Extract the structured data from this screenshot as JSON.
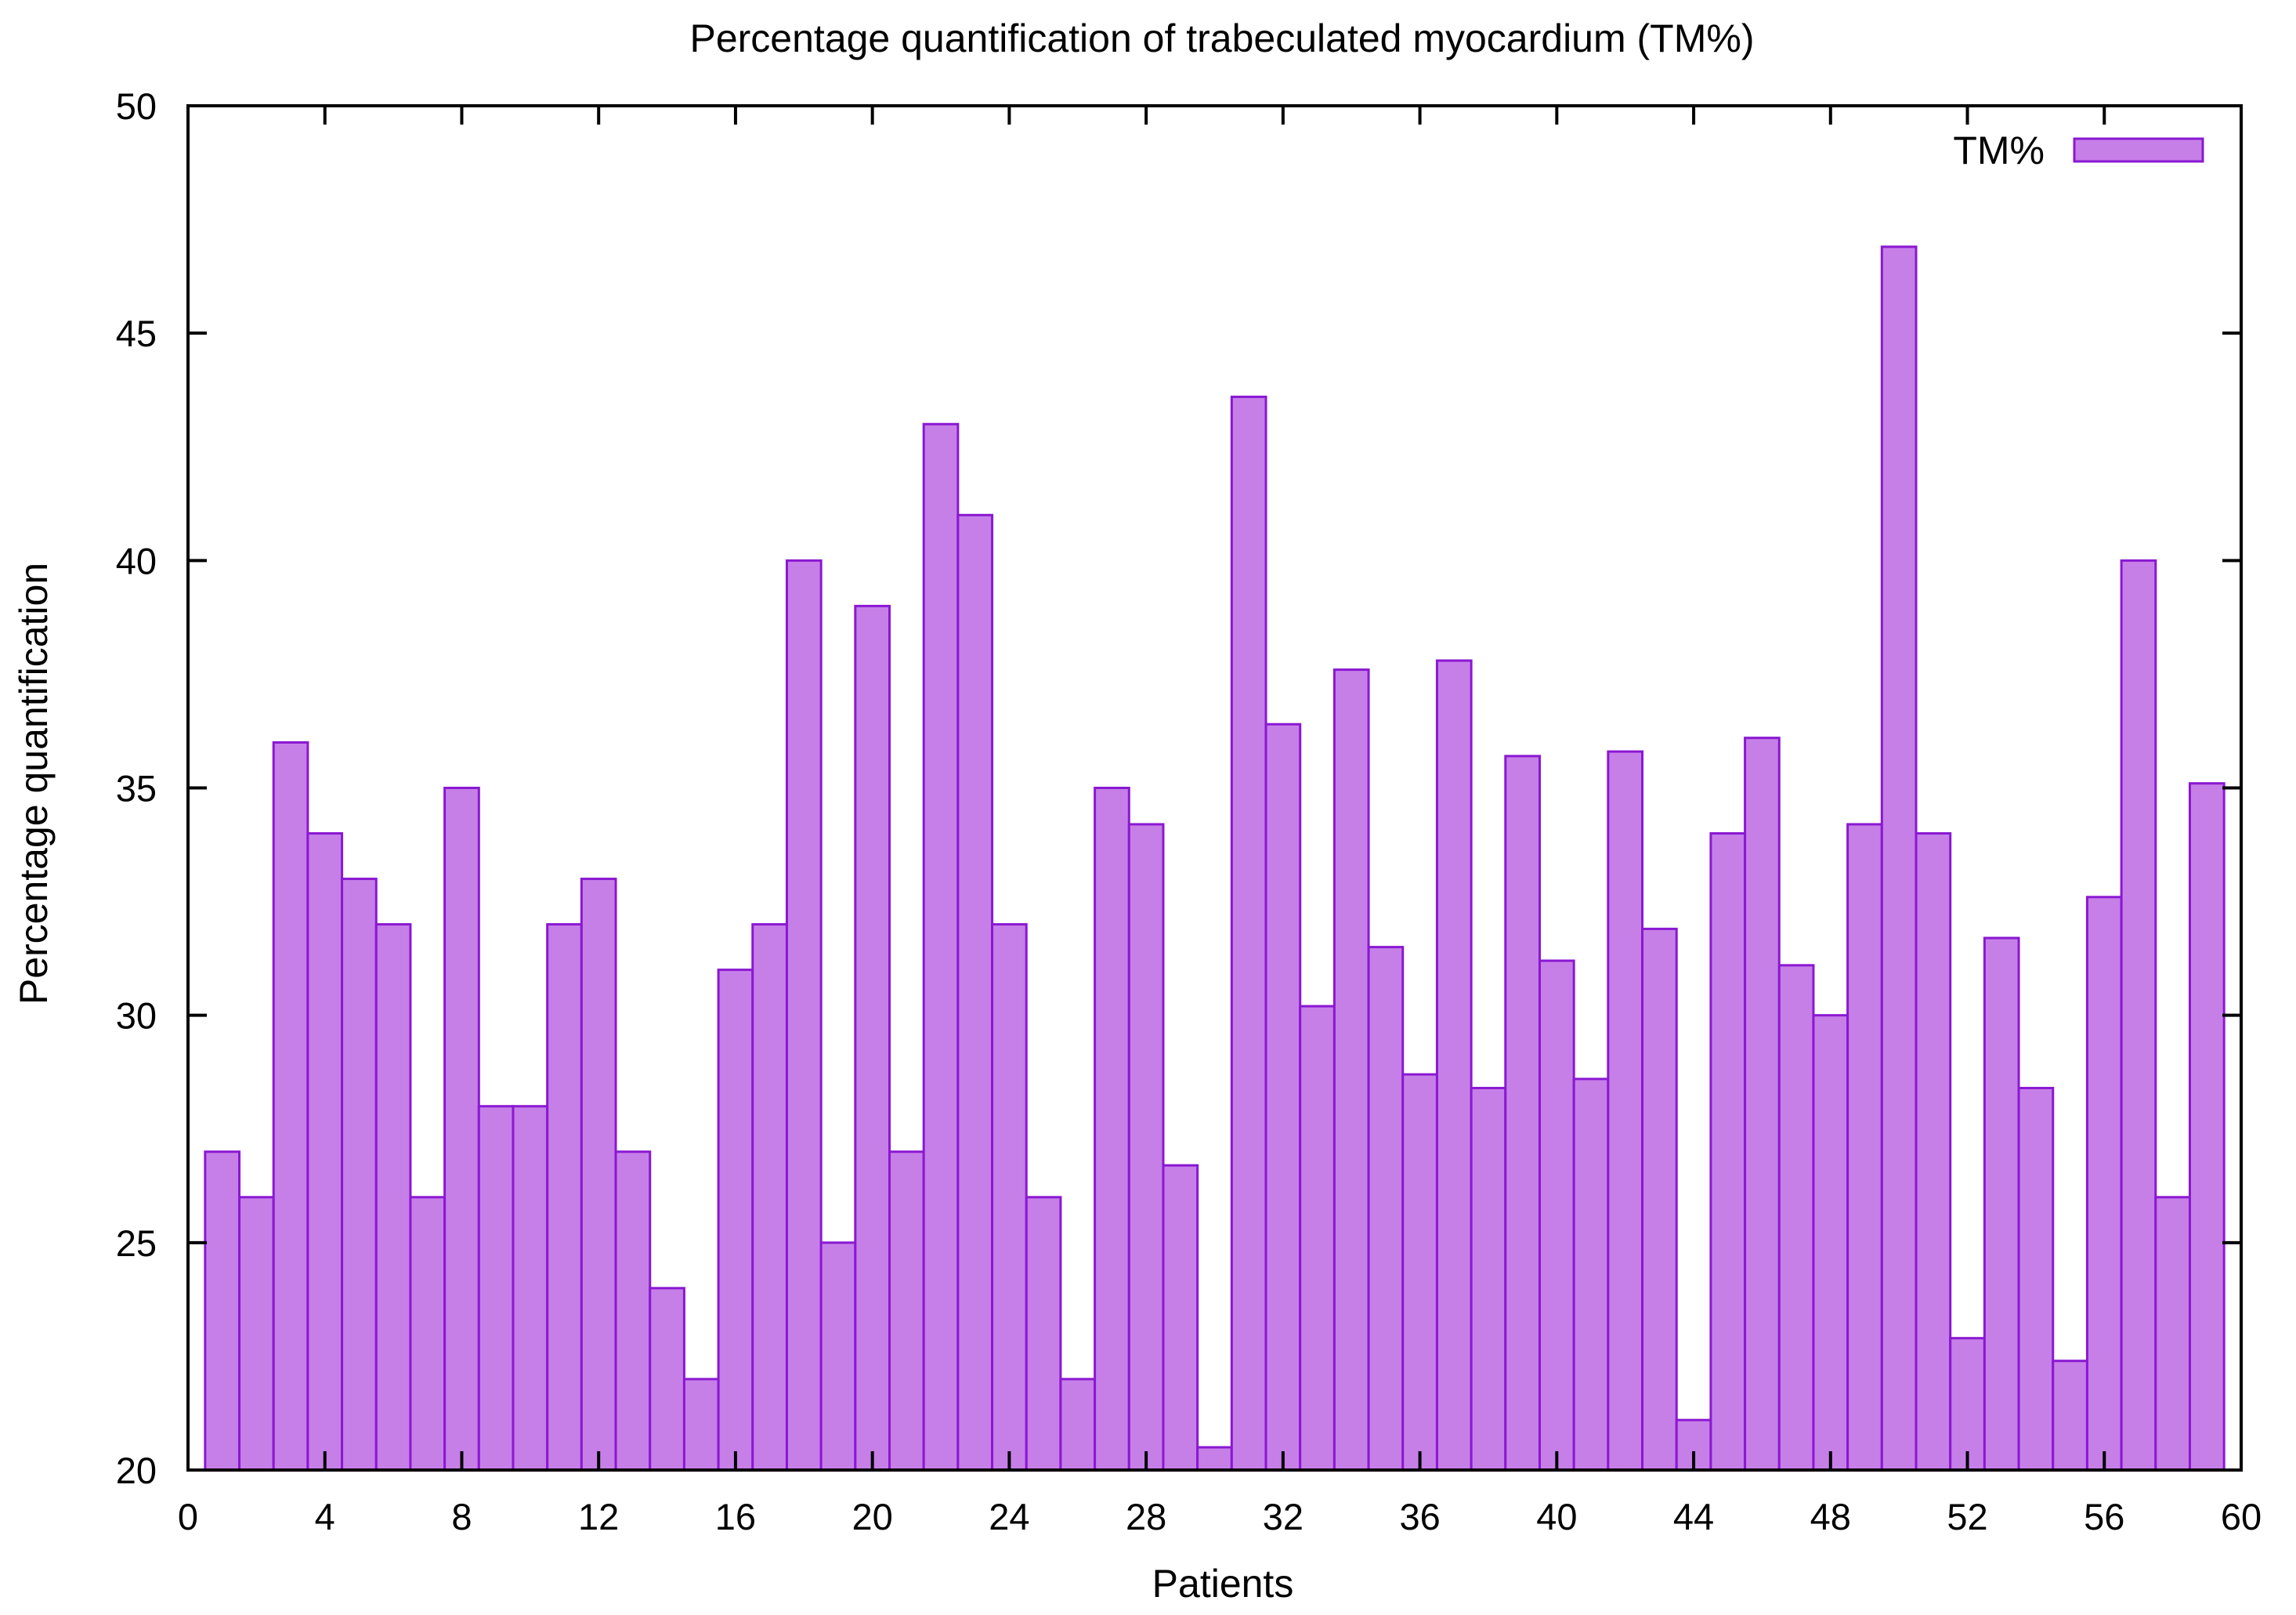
{
  "colors": {
    "bar_fill": "#c77fe8",
    "bar_stroke": "#8a18d2",
    "axis": "#000000",
    "background": "#ffffff"
  },
  "chart_data": {
    "type": "bar",
    "title": "Percentage quantification of trabeculated myocardium (TM%)",
    "xlabel": "Patients",
    "ylabel": "Percentage quantification",
    "xlim": [
      0,
      60
    ],
    "ylim": [
      20,
      50
    ],
    "x_ticks": [
      0,
      4,
      8,
      12,
      16,
      20,
      24,
      28,
      32,
      36,
      40,
      44,
      48,
      52,
      56,
      60
    ],
    "y_ticks": [
      20,
      25,
      30,
      35,
      40,
      45,
      50
    ],
    "grid": false,
    "legend": {
      "position": "top-right",
      "entries": [
        "TM%"
      ]
    },
    "series": [
      {
        "name": "TM%",
        "x": [
          1,
          2,
          3,
          4,
          5,
          6,
          7,
          8,
          9,
          10,
          11,
          12,
          13,
          14,
          15,
          16,
          17,
          18,
          19,
          20,
          21,
          22,
          23,
          24,
          25,
          26,
          27,
          28,
          29,
          30,
          31,
          32,
          33,
          34,
          35,
          36,
          37,
          38,
          39,
          40,
          41,
          42,
          43,
          44,
          45,
          46,
          47,
          48,
          49,
          50,
          51,
          52,
          53,
          54,
          55,
          56,
          57,
          58,
          59
        ],
        "values": [
          27,
          26,
          36,
          34,
          33,
          32,
          26,
          35,
          28,
          28,
          32,
          33,
          27,
          24,
          22,
          31,
          32,
          40,
          25,
          39,
          27,
          43,
          41,
          32,
          26,
          22,
          35,
          34.2,
          26.7,
          20.5,
          43.6,
          36.4,
          30.2,
          37.6,
          31.5,
          28.7,
          37.8,
          28.4,
          35.7,
          31.2,
          28.6,
          35.8,
          31.9,
          21.1,
          34,
          36.1,
          31.1,
          30,
          34.2,
          46.9,
          34,
          22.9,
          31.7,
          28.4,
          22.4,
          32.6,
          40,
          26,
          35.1
        ]
      }
    ]
  }
}
